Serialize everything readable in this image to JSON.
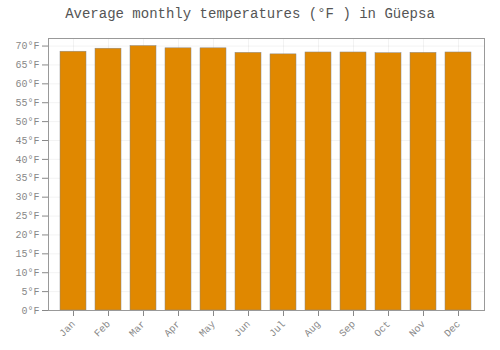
{
  "chart_data": {
    "type": "bar",
    "title": "Average monthly temperatures (°F ) in Güepsa",
    "categories": [
      "Jan",
      "Feb",
      "Mar",
      "Apr",
      "May",
      "Jun",
      "Jul",
      "Aug",
      "Sep",
      "Oct",
      "Nov",
      "Dec"
    ],
    "values": [
      68.5,
      69.3,
      70.0,
      69.4,
      69.4,
      68.2,
      67.8,
      68.3,
      68.3,
      68.1,
      68.2,
      68.3
    ],
    "color": "#E08800",
    "ylim": [
      0,
      72
    ],
    "yticks": [
      {
        "value": 0,
        "label": "0°F"
      },
      {
        "value": 5,
        "label": "5°F"
      },
      {
        "value": 10,
        "label": "10°F"
      },
      {
        "value": 15,
        "label": "15°F"
      },
      {
        "value": 20,
        "label": "20°F"
      },
      {
        "value": 25,
        "label": "25°F"
      },
      {
        "value": 30,
        "label": "30°F"
      },
      {
        "value": 35,
        "label": "35°F"
      },
      {
        "value": 40,
        "label": "40°F"
      },
      {
        "value": 45,
        "label": "45°F"
      },
      {
        "value": 50,
        "label": "50°F"
      },
      {
        "value": 55,
        "label": "55°F"
      },
      {
        "value": 60,
        "label": "60°F"
      },
      {
        "value": 65,
        "label": "65°F"
      },
      {
        "value": 70,
        "label": "70°F"
      }
    ],
    "grid": true
  }
}
